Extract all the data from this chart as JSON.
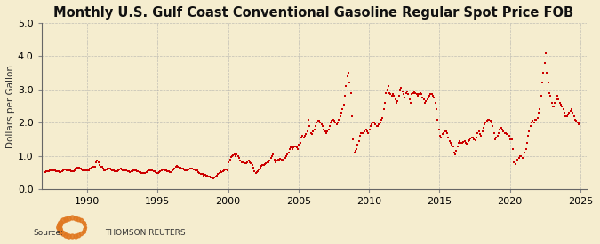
{
  "title": "Monthly U.S. Gulf Coast Conventional Gasoline Regular Spot Price FOB",
  "ylabel": "Dollars per Gallon",
  "source_text": "Source:",
  "source_label": "THOMSON REUTERS",
  "bg_color": "#f5edcf",
  "plot_bg_color": "#f5edcf",
  "line_color": "#cc0000",
  "marker_color": "#cc0000",
  "grid_color": "#aaaaaa",
  "ylim": [
    0.0,
    5.0
  ],
  "yticks": [
    0.0,
    1.0,
    2.0,
    3.0,
    4.0,
    5.0
  ],
  "xticks": [
    1990,
    1995,
    2000,
    2005,
    2010,
    2015,
    2020,
    2025
  ],
  "title_fontsize": 10.5,
  "ylabel_fontsize": 7.5,
  "tick_fontsize": 8,
  "price_series": [
    0.52,
    0.53,
    0.55,
    0.55,
    0.58,
    0.57,
    0.56,
    0.57,
    0.56,
    0.55,
    0.54,
    0.53,
    0.52,
    0.52,
    0.55,
    0.58,
    0.6,
    0.59,
    0.57,
    0.57,
    0.57,
    0.56,
    0.54,
    0.53,
    0.55,
    0.57,
    0.62,
    0.65,
    0.65,
    0.64,
    0.62,
    0.6,
    0.58,
    0.57,
    0.56,
    0.56,
    0.58,
    0.58,
    0.62,
    0.65,
    0.67,
    0.68,
    0.67,
    0.8,
    0.85,
    0.8,
    0.72,
    0.67,
    0.68,
    0.62,
    0.58,
    0.57,
    0.6,
    0.62,
    0.62,
    0.62,
    0.6,
    0.58,
    0.56,
    0.54,
    0.53,
    0.54,
    0.57,
    0.6,
    0.62,
    0.6,
    0.58,
    0.58,
    0.57,
    0.56,
    0.55,
    0.54,
    0.52,
    0.53,
    0.55,
    0.57,
    0.58,
    0.57,
    0.55,
    0.53,
    0.52,
    0.51,
    0.5,
    0.49,
    0.48,
    0.49,
    0.52,
    0.55,
    0.57,
    0.57,
    0.57,
    0.57,
    0.55,
    0.53,
    0.51,
    0.5,
    0.5,
    0.52,
    0.55,
    0.58,
    0.6,
    0.6,
    0.58,
    0.57,
    0.55,
    0.53,
    0.52,
    0.51,
    0.58,
    0.6,
    0.63,
    0.67,
    0.7,
    0.68,
    0.65,
    0.65,
    0.63,
    0.62,
    0.6,
    0.58,
    0.58,
    0.58,
    0.6,
    0.62,
    0.63,
    0.62,
    0.6,
    0.6,
    0.58,
    0.57,
    0.52,
    0.5,
    0.47,
    0.47,
    0.45,
    0.42,
    0.43,
    0.42,
    0.4,
    0.38,
    0.37,
    0.36,
    0.35,
    0.34,
    0.35,
    0.38,
    0.42,
    0.47,
    0.5,
    0.53,
    0.52,
    0.55,
    0.57,
    0.6,
    0.6,
    0.58,
    0.8,
    0.9,
    0.98,
    1.0,
    1.02,
    1.05,
    1.0,
    1.05,
    1.0,
    0.95,
    0.85,
    0.8,
    0.82,
    0.8,
    0.78,
    0.77,
    0.82,
    0.85,
    0.82,
    0.78,
    0.72,
    0.65,
    0.55,
    0.5,
    0.52,
    0.55,
    0.6,
    0.65,
    0.7,
    0.72,
    0.73,
    0.75,
    0.78,
    0.8,
    0.82,
    0.85,
    0.95,
    1.0,
    1.05,
    0.9,
    0.82,
    0.85,
    0.88,
    0.9,
    0.92,
    0.88,
    0.85,
    0.88,
    0.95,
    1.0,
    1.05,
    1.1,
    1.2,
    1.25,
    1.2,
    1.25,
    1.28,
    1.3,
    1.25,
    1.2,
    1.35,
    1.4,
    1.55,
    1.6,
    1.55,
    1.6,
    1.65,
    1.75,
    2.1,
    1.9,
    1.7,
    1.65,
    1.75,
    1.8,
    1.9,
    2.0,
    2.05,
    2.05,
    2.0,
    1.95,
    1.9,
    1.8,
    1.75,
    1.7,
    1.75,
    1.8,
    1.9,
    2.0,
    2.05,
    2.1,
    2.05,
    2.0,
    1.95,
    2.0,
    2.1,
    2.2,
    2.3,
    2.4,
    2.55,
    2.8,
    3.1,
    3.4,
    3.5,
    3.2,
    2.9,
    2.2,
    1.5,
    1.1,
    1.15,
    1.2,
    1.35,
    1.45,
    1.6,
    1.7,
    1.7,
    1.7,
    1.75,
    1.8,
    1.75,
    1.7,
    1.8,
    1.9,
    1.95,
    2.0,
    2.0,
    1.95,
    1.9,
    1.9,
    1.95,
    2.0,
    2.1,
    2.15,
    2.4,
    2.6,
    2.9,
    3.0,
    3.1,
    2.9,
    2.85,
    2.8,
    2.85,
    2.8,
    2.7,
    2.6,
    2.65,
    2.8,
    3.0,
    3.05,
    2.95,
    2.85,
    2.75,
    2.9,
    2.95,
    2.85,
    2.7,
    2.6,
    2.85,
    2.9,
    2.95,
    2.9,
    2.85,
    2.8,
    2.85,
    2.9,
    2.85,
    2.75,
    2.7,
    2.6,
    2.65,
    2.7,
    2.75,
    2.8,
    2.85,
    2.85,
    2.8,
    2.75,
    2.6,
    2.4,
    2.1,
    1.8,
    1.6,
    1.55,
    1.65,
    1.7,
    1.75,
    1.75,
    1.7,
    1.55,
    1.45,
    1.4,
    1.35,
    1.3,
    1.1,
    1.05,
    1.15,
    1.3,
    1.4,
    1.45,
    1.4,
    1.4,
    1.42,
    1.45,
    1.4,
    1.38,
    1.45,
    1.48,
    1.52,
    1.55,
    1.55,
    1.5,
    1.48,
    1.55,
    1.7,
    1.75,
    1.65,
    1.6,
    1.75,
    1.85,
    1.95,
    2.0,
    2.05,
    2.1,
    2.1,
    2.05,
    2.0,
    1.9,
    1.7,
    1.5,
    1.55,
    1.6,
    1.7,
    1.8,
    1.85,
    1.8,
    1.75,
    1.7,
    1.7,
    1.65,
    1.62,
    1.6,
    1.5,
    1.5,
    1.2,
    0.8,
    0.75,
    0.85,
    0.9,
    0.95,
    1.0,
    1.0,
    0.95,
    0.95,
    1.1,
    1.2,
    1.4,
    1.6,
    1.75,
    1.9,
    2.0,
    2.05,
    2.0,
    2.1,
    2.1,
    2.15,
    2.3,
    2.4,
    2.8,
    3.2,
    3.5,
    3.8,
    4.1,
    3.5,
    3.2,
    2.9,
    2.8,
    2.6,
    2.5,
    2.5,
    2.6,
    2.7,
    2.8,
    2.7,
    2.6,
    2.55,
    2.5,
    2.4,
    2.3,
    2.2,
    2.2,
    2.25,
    2.3,
    2.35,
    2.4,
    2.3,
    2.2,
    2.1,
    2.05,
    2.0,
    1.95,
    2.0
  ],
  "start_year": 1987,
  "start_month": 1
}
